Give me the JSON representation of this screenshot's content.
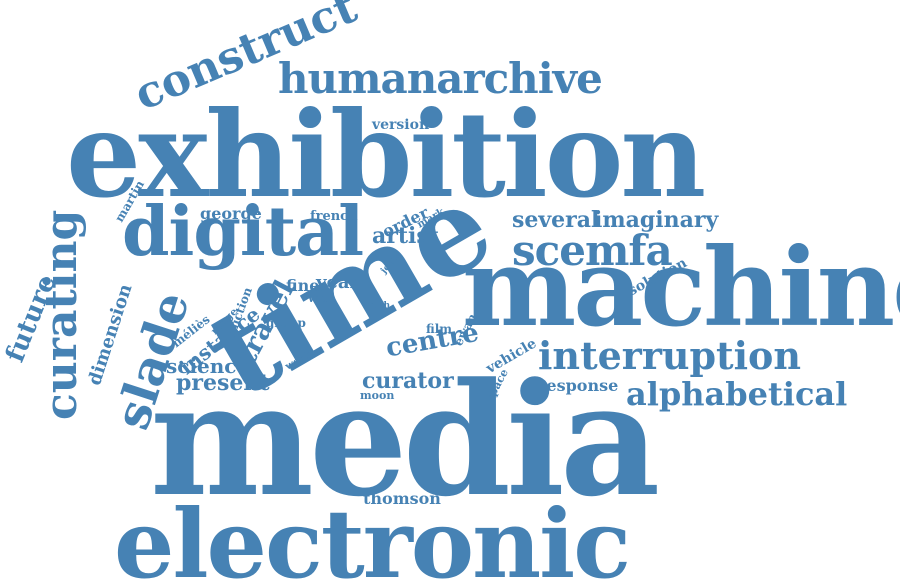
{
  "color": "#4682b4",
  "words": [
    "exhibition",
    "media",
    "time",
    "machine",
    "electronic",
    "digital",
    "humanarchive",
    "construct",
    "curating",
    "slade",
    "future",
    "scemfa",
    "interruption",
    "alphabetical",
    "several",
    "imaginary",
    "dimension",
    "travel",
    "centre",
    "curator",
    "present",
    "science",
    "instance",
    "artist",
    "george",
    "french",
    "order",
    "version",
    "response",
    "solution",
    "year",
    "fine",
    "well",
    "group",
    "méliès",
    "range",
    "fiction",
    "martin",
    "vehicle",
    "space",
    "thomson",
    "film",
    "ewan",
    "moon",
    "work",
    "ruth",
    "mark",
    "john"
  ]
}
